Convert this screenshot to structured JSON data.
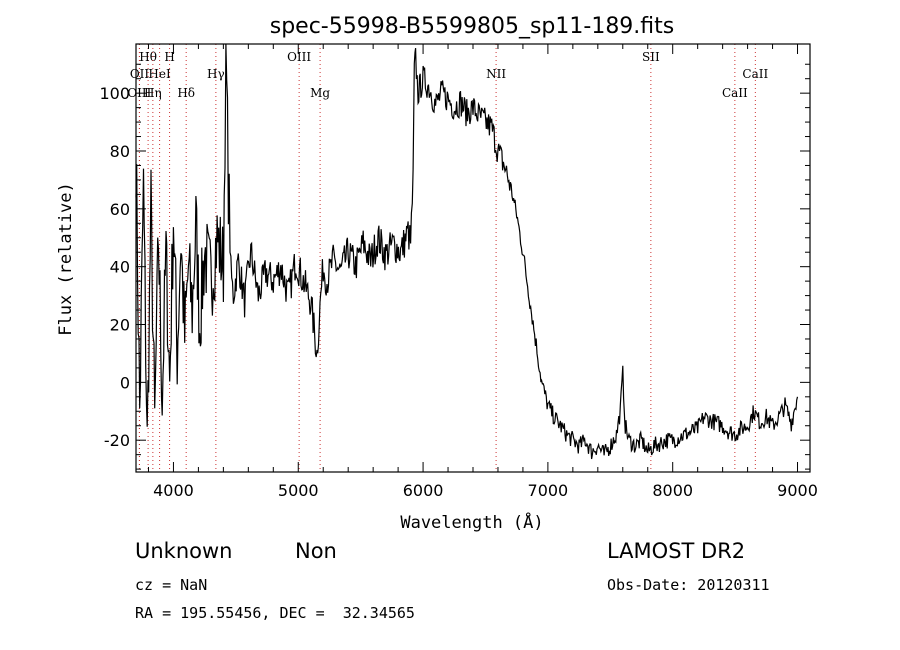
{
  "chart_data": {
    "type": "line",
    "title": "spec-55998-B5599805_sp11-189.fits",
    "xlabel": "Wavelength (Å)",
    "ylabel": "Flux (relative)",
    "xlim": [
      3700,
      9100
    ],
    "ylim": [
      -31,
      117
    ],
    "xticks": [
      4000,
      5000,
      6000,
      7000,
      8000,
      9000
    ],
    "yticks": [
      -20,
      0,
      20,
      40,
      60,
      80,
      100
    ],
    "series": [
      {
        "x": [
          3700,
          3730,
          3760,
          3790,
          3820,
          3850,
          3880,
          3910,
          3940,
          3970,
          4000,
          4030,
          4060,
          4090,
          4120,
          4150,
          4180,
          4210,
          4250,
          4300,
          4350,
          4400,
          4420,
          4440,
          4460,
          4480,
          4520,
          4570,
          4620,
          4680,
          4740,
          4800,
          4860,
          4920,
          4980,
          5040,
          5100,
          5150,
          5180,
          5200,
          5230,
          5280,
          5340,
          5400,
          5460,
          5520,
          5580,
          5640,
          5700,
          5760,
          5820,
          5880,
          5900,
          5920,
          5930,
          5940,
          5960,
          6000,
          6050,
          6100,
          6150,
          6200,
          6250,
          6300,
          6350,
          6400,
          6450,
          6500,
          6550,
          6600,
          6650,
          6700,
          6750,
          6800,
          6850,
          6900,
          6950,
          7000,
          7050,
          7100,
          7150,
          7200,
          7250,
          7300,
          7350,
          7400,
          7450,
          7500,
          7550,
          7580,
          7600,
          7620,
          7650,
          7700,
          7750,
          7800,
          7850,
          7900,
          7950,
          8000,
          8050,
          8100,
          8150,
          8200,
          8250,
          8300,
          8350,
          8400,
          8450,
          8500,
          8550,
          8600,
          8650,
          8700,
          8750,
          8800,
          8850,
          8900,
          8950,
          9000
        ],
        "y": [
          80,
          -10,
          68,
          -22,
          60,
          -15,
          50,
          -5,
          45,
          0,
          58,
          10,
          50,
          15,
          40,
          25,
          55,
          20,
          45,
          35,
          50,
          40,
          115,
          70,
          38,
          30,
          42,
          28,
          45,
          30,
          38,
          35,
          40,
          30,
          42,
          35,
          28,
          10,
          30,
          40,
          35,
          42,
          38,
          45,
          40,
          48,
          42,
          50,
          44,
          48,
          45,
          52,
          48,
          70,
          108,
          112,
          100,
          105,
          102,
          96,
          100,
          98,
          95,
          97,
          93,
          95,
          92,
          90,
          88,
          80,
          75,
          68,
          58,
          45,
          30,
          15,
          0,
          -8,
          -12,
          -15,
          -18,
          -20,
          -22,
          -20,
          -24,
          -22,
          -25,
          -22,
          -18,
          -10,
          3,
          -15,
          -20,
          -22,
          -20,
          -24,
          -22,
          -21,
          -20,
          -20,
          -19,
          -18,
          -17,
          -16,
          -12,
          -13,
          -14,
          -15,
          -17,
          -18,
          -16,
          -15,
          -10,
          -14,
          -12,
          -15,
          -12,
          -8,
          -14,
          -5
        ]
      }
    ],
    "lines": [
      {
        "label": "Hθ",
        "x": 3797,
        "row": 1
      },
      {
        "label": "H",
        "x": 3969,
        "row": 1
      },
      {
        "label": "OII",
        "x": 3728,
        "row": 2
      },
      {
        "label": "HeI",
        "x": 3889,
        "row": 2
      },
      {
        "label": "Hγ",
        "x": 4340,
        "row": 2
      },
      {
        "label": "OIII",
        "x": 3727,
        "row": 3
      },
      {
        "label": "Hη",
        "x": 3835,
        "row": 3
      },
      {
        "label": "Hδ",
        "x": 4102,
        "row": 3
      },
      {
        "label": "OIII",
        "x": 5007,
        "row": 1
      },
      {
        "label": "Mg",
        "x": 5175,
        "row": 3
      },
      {
        "label": "NII",
        "x": 6585,
        "row": 2
      },
      {
        "label": "SII",
        "x": 7825,
        "row": 1
      },
      {
        "label": "CaII",
        "x": 8662,
        "row": 2
      },
      {
        "label": "CaII",
        "x": 8498,
        "row": 3
      }
    ]
  },
  "info": {
    "class": "Unknown",
    "subclass": "Non",
    "survey": "LAMOST DR2",
    "cz": "cz = NaN",
    "obs_date": "Obs-Date: 20120311",
    "coords": "RA = 195.55456, DEC =  32.34565"
  }
}
